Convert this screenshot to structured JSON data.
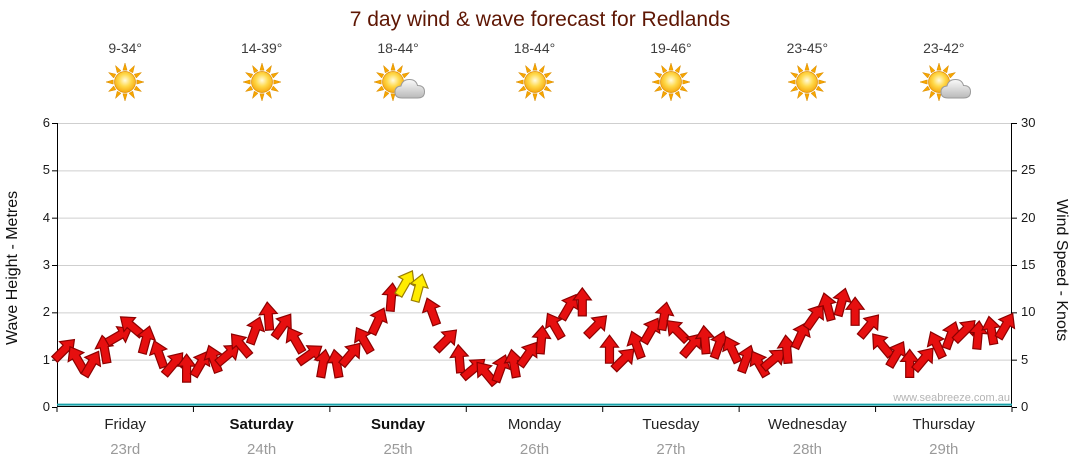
{
  "title": "7 day wind & wave forecast for Redlands",
  "watermark": "www.seabreeze.com.au",
  "colors": {
    "title": "#5e1603",
    "arrow_red": "#e60f0f",
    "arrow_red_stroke": "#8d0000",
    "arrow_yellow": "#ffec00",
    "arrow_yellow_stroke": "#9a7d00",
    "wave_line": "#18a0a8",
    "grid": "#cfcfcf",
    "axis": "#000000",
    "sun": "#f6a500"
  },
  "axes": {
    "left_label": "Wave Height - Metres",
    "right_label": "Wind Speed - Knots",
    "left_ticks": [
      0,
      1,
      2,
      3,
      4,
      5,
      6
    ],
    "right_ticks": [
      0,
      5,
      10,
      15,
      20,
      25,
      30
    ]
  },
  "days": [
    {
      "name": "Friday",
      "date": "23rd",
      "temp": "9-34°",
      "icon": "sun",
      "bold": false
    },
    {
      "name": "Saturday",
      "date": "24th",
      "temp": "14-39°",
      "icon": "sun",
      "bold": true
    },
    {
      "name": "Sunday",
      "date": "25th",
      "temp": "18-44°",
      "icon": "sun-cloud",
      "bold": true
    },
    {
      "name": "Monday",
      "date": "26th",
      "temp": "18-44°",
      "icon": "sun",
      "bold": false
    },
    {
      "name": "Tuesday",
      "date": "27th",
      "temp": "19-46°",
      "icon": "sun",
      "bold": false
    },
    {
      "name": "Wednesday",
      "date": "28th",
      "temp": "23-45°",
      "icon": "sun",
      "bold": false
    },
    {
      "name": "Thursday",
      "date": "29th",
      "temp": "23-42°",
      "icon": "sun-cloud",
      "bold": false
    }
  ],
  "chart_data": {
    "type": "scatter",
    "title": "7 day wind & wave forecast for Redlands",
    "x_categories": [
      "Friday 23rd",
      "Saturday 24th",
      "Sunday 25th",
      "Monday 26th",
      "Tuesday 27th",
      "Wednesday 28th",
      "Thursday 29th"
    ],
    "points_per_day": 10,
    "ylabel_left": "Wave Height - Metres",
    "ylim_left": [
      0,
      6
    ],
    "ylabel_right": "Wind Speed - Knots",
    "ylim_right": [
      0,
      30
    ],
    "grid": true,
    "legend": false,
    "series": [
      {
        "name": "Wind speed arrows (knots)",
        "yellow_above_knots": 12,
        "values": [
          6,
          5,
          4.5,
          6,
          7.5,
          8.5,
          7,
          5.5,
          4.5,
          4,
          4.5,
          5,
          5.5,
          6.5,
          8,
          9.5,
          8.5,
          7,
          5.5,
          4.5,
          4.5,
          5.5,
          7,
          9,
          11.5,
          13,
          12.5,
          10,
          7,
          5,
          4,
          3.5,
          4,
          4.5,
          5.5,
          7,
          8.5,
          10.5,
          11,
          8.5,
          6,
          5,
          6.5,
          8,
          9.5,
          8,
          6.5,
          7,
          6.5,
          6,
          5,
          4.5,
          5,
          6,
          7.5,
          9.5,
          10.5,
          11,
          10,
          8.5,
          6.5,
          5.5,
          4.5,
          5,
          6.5,
          7.5,
          8,
          7.5,
          8,
          8.5
        ],
        "dir_deg": [
          -45,
          -120,
          -60,
          -100,
          -30,
          -140,
          -75,
          -110,
          -50,
          -90,
          -60,
          -110,
          -40,
          -130,
          -70,
          -95,
          -55,
          -120,
          -35,
          -80,
          -100,
          -50,
          -120,
          -65,
          -85,
          -60,
          -75,
          -110,
          -45,
          -95,
          -40,
          -130,
          -70,
          -100,
          -55,
          -85,
          -120,
          -60,
          -90,
          -45,
          -90,
          -45,
          -110,
          -60,
          -80,
          -135,
          -50,
          -95,
          -70,
          -115,
          -70,
          -120,
          -40,
          -95,
          -65,
          -55,
          -105,
          -75,
          -90,
          -50,
          -130,
          -60,
          -90,
          -50,
          -115,
          -70,
          -45,
          -85,
          -100,
          -60
        ]
      },
      {
        "name": "Wave height (m)",
        "constant": 0.05
      }
    ]
  }
}
